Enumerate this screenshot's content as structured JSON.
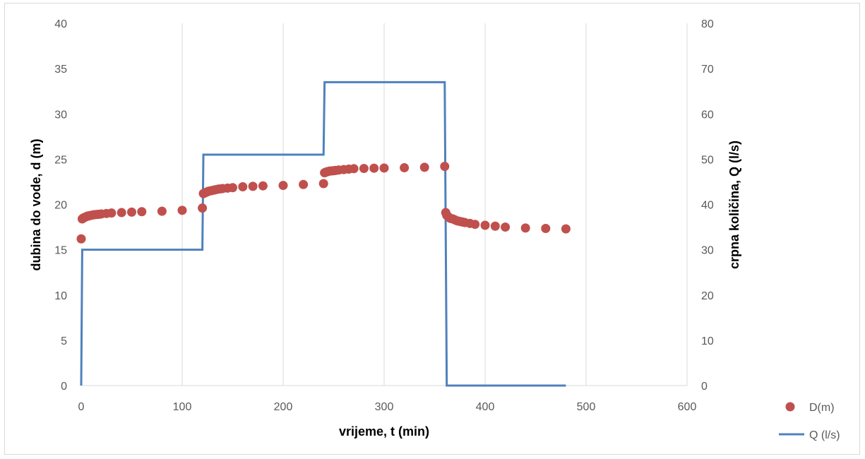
{
  "chart_data": {
    "type": "scatter",
    "title": "",
    "xlabel": "vrijeme, t (min)",
    "ylabel": "dubina do vode, d (m)",
    "y2label": "crpna količina, Q (l/s)",
    "xlim": [
      0,
      600
    ],
    "ylim": [
      0,
      40
    ],
    "y2lim": [
      0,
      80
    ],
    "xticks": [
      0,
      100,
      200,
      300,
      400,
      500,
      600
    ],
    "yticks": [
      0,
      5,
      10,
      15,
      20,
      25,
      30,
      35,
      40
    ],
    "y2ticks": [
      0,
      10,
      20,
      30,
      40,
      50,
      60,
      70,
      80
    ],
    "grid": "vertical",
    "legend_position": "right",
    "series": [
      {
        "name": "D(m)",
        "type": "scatter",
        "axis": "left",
        "color": "#c0504d",
        "x": [
          0,
          1,
          2,
          3,
          4,
          5,
          6,
          7,
          8,
          10,
          12,
          14,
          16,
          18,
          20,
          25,
          30,
          40,
          50,
          60,
          80,
          100,
          120,
          121,
          122,
          123,
          124,
          125,
          126,
          128,
          130,
          132,
          134,
          136,
          138,
          140,
          145,
          150,
          160,
          170,
          180,
          200,
          220,
          240,
          241,
          242,
          243,
          244,
          245,
          246,
          248,
          250,
          252,
          255,
          260,
          265,
          270,
          280,
          290,
          300,
          320,
          340,
          360,
          361,
          362,
          363,
          364,
          365,
          366,
          368,
          370,
          372,
          374,
          376,
          378,
          380,
          385,
          390,
          400,
          410,
          420,
          440,
          460,
          480
        ],
        "y": [
          16.2,
          18.4,
          18.5,
          18.55,
          18.6,
          18.65,
          18.7,
          18.72,
          18.75,
          18.8,
          18.85,
          18.88,
          18.9,
          18.92,
          18.95,
          19.0,
          19.05,
          19.1,
          19.15,
          19.2,
          19.25,
          19.35,
          19.6,
          21.2,
          21.25,
          21.3,
          21.35,
          21.4,
          21.45,
          21.5,
          21.55,
          21.6,
          21.65,
          21.7,
          21.72,
          21.75,
          21.8,
          21.85,
          21.95,
          22.0,
          22.05,
          22.1,
          22.2,
          22.3,
          23.5,
          23.55,
          23.6,
          23.62,
          23.65,
          23.68,
          23.7,
          23.72,
          23.75,
          23.8,
          23.85,
          23.9,
          23.95,
          23.97,
          24.0,
          24.02,
          24.05,
          24.1,
          24.2,
          19.1,
          18.8,
          18.7,
          18.6,
          18.5,
          18.45,
          18.4,
          18.3,
          18.2,
          18.15,
          18.1,
          18.05,
          18.0,
          17.9,
          17.8,
          17.7,
          17.6,
          17.5,
          17.4,
          17.35,
          17.3
        ]
      },
      {
        "name": "Q (l/s)",
        "type": "line",
        "axis": "right",
        "color": "#4f81bd",
        "x": [
          0,
          1,
          120,
          121,
          240,
          241,
          360,
          362,
          480
        ],
        "y": [
          0,
          30,
          30,
          51,
          51,
          67,
          67,
          0,
          0
        ]
      }
    ]
  }
}
